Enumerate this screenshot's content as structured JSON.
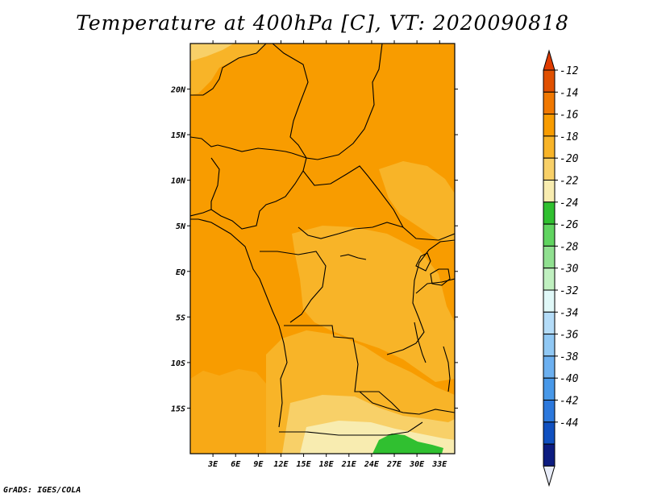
{
  "title": "Temperature at 400hPa [C], VT: 2020090818",
  "credit": "GrADS: IGES/COLA",
  "map": {
    "lon_range": [
      0,
      35
    ],
    "lat_range": [
      -20,
      25
    ],
    "lat_ticks": [
      {
        "value": 20,
        "label": "20N"
      },
      {
        "value": 15,
        "label": "15N"
      },
      {
        "value": 10,
        "label": "10N"
      },
      {
        "value": 5,
        "label": "5N"
      },
      {
        "value": 0,
        "label": "EQ"
      },
      {
        "value": -5,
        "label": "5S"
      },
      {
        "value": -10,
        "label": "10S"
      },
      {
        "value": -15,
        "label": "15S"
      }
    ],
    "lon_ticks": [
      {
        "value": 3,
        "label": "3E"
      },
      {
        "value": 6,
        "label": "6E"
      },
      {
        "value": 9,
        "label": "9E"
      },
      {
        "value": 12,
        "label": "12E"
      },
      {
        "value": 15,
        "label": "15E"
      },
      {
        "value": 18,
        "label": "18E"
      },
      {
        "value": 21,
        "label": "21E"
      },
      {
        "value": 24,
        "label": "24E"
      },
      {
        "value": 27,
        "label": "27E"
      },
      {
        "value": 30,
        "label": "30E"
      },
      {
        "value": 33,
        "label": "33E"
      }
    ]
  },
  "colorbar": {
    "labels": [
      "-12",
      "-14",
      "-16",
      "-18",
      "-20",
      "-22",
      "-24",
      "-26",
      "-28",
      "-30",
      "-32",
      "-34",
      "-36",
      "-38",
      "-40",
      "-42",
      "-44"
    ],
    "colors": [
      "#e05000",
      "#f07800",
      "#f89c00",
      "#f8b428",
      "#f8d068",
      "#f8ecb0",
      "#30c030",
      "#60d460",
      "#90e090",
      "#c0f0c0",
      "#e0f8f8",
      "#b4dcf8",
      "#90c8f4",
      "#6cb0f0",
      "#4898e8",
      "#2c78dc",
      "#1050c0",
      "#0c1c80"
    ],
    "over_color": "#e03c00",
    "under_color": "#e8ecf8"
  }
}
